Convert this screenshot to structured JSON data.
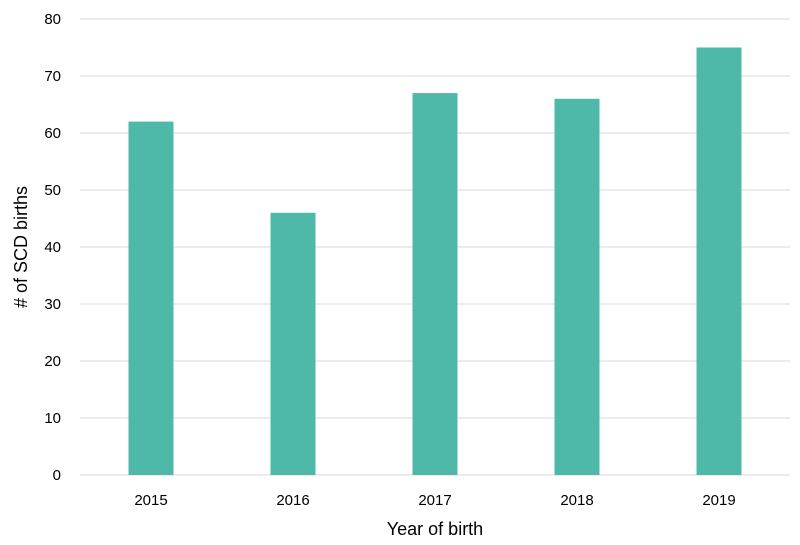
{
  "chart_data": {
    "type": "bar",
    "title": "",
    "xlabel": "Year of birth",
    "ylabel": "# of SCD births",
    "categories": [
      "2015",
      "2016",
      "2017",
      "2018",
      "2019"
    ],
    "values": [
      62,
      46,
      67,
      66,
      75
    ],
    "ylim": [
      0,
      80
    ],
    "yticks": [
      0,
      10,
      20,
      30,
      40,
      50,
      60,
      70,
      80
    ],
    "grid": true,
    "legend": "none",
    "bar_color": "#4eb9a9",
    "grid_color": "#d9d9d9"
  }
}
